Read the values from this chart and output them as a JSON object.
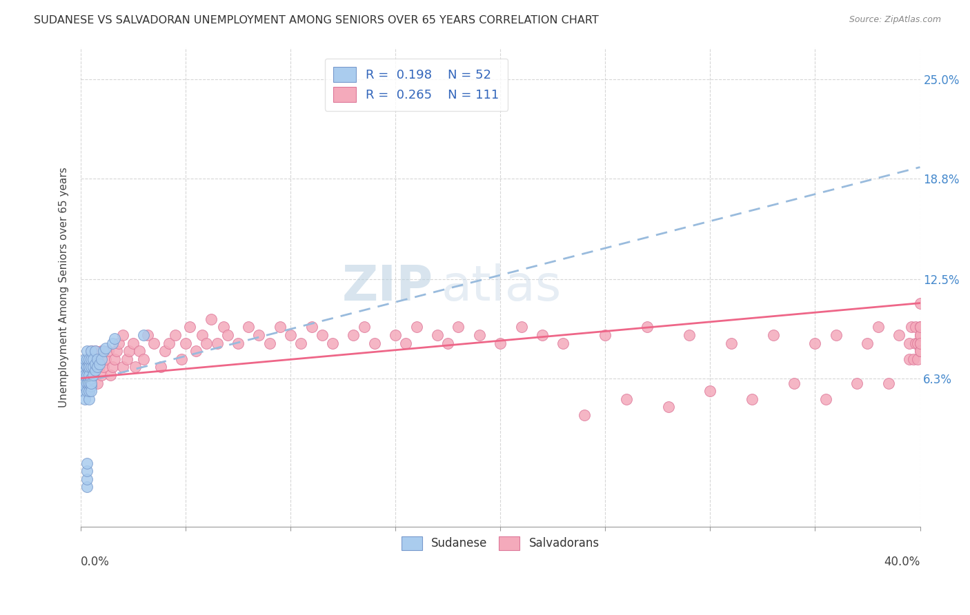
{
  "title": "SUDANESE VS SALVADORAN UNEMPLOYMENT AMONG SENIORS OVER 65 YEARS CORRELATION CHART",
  "source": "Source: ZipAtlas.com",
  "ylabel": "Unemployment Among Seniors over 65 years",
  "xlim": [
    0.0,
    0.4
  ],
  "ylim": [
    -0.03,
    0.27
  ],
  "yticks": [
    0.063,
    0.125,
    0.188,
    0.25
  ],
  "ytick_labels": [
    "6.3%",
    "12.5%",
    "18.8%",
    "25.0%"
  ],
  "xtick_left_label": "0.0%",
  "xtick_right_label": "40.0%",
  "sudanese_color": "#aaccee",
  "salvadoran_color": "#f4aabb",
  "sudanese_edge": "#7799cc",
  "salvadoran_edge": "#dd7799",
  "trend_blue_color": "#99bbdd",
  "trend_pink_color": "#ee6688",
  "legend_R_sudanese": "0.198",
  "legend_N_sudanese": "52",
  "legend_R_salvadoran": "0.265",
  "legend_N_salvadoran": "111",
  "watermark_zip": "ZIP",
  "watermark_atlas": "atlas",
  "sudanese_x": [
    0.001,
    0.001,
    0.001,
    0.002,
    0.002,
    0.002,
    0.002,
    0.002,
    0.002,
    0.002,
    0.003,
    0.003,
    0.003,
    0.003,
    0.003,
    0.003,
    0.003,
    0.003,
    0.003,
    0.003,
    0.004,
    0.004,
    0.004,
    0.004,
    0.004,
    0.004,
    0.004,
    0.004,
    0.004,
    0.004,
    0.005,
    0.005,
    0.005,
    0.005,
    0.005,
    0.005,
    0.005,
    0.006,
    0.006,
    0.006,
    0.007,
    0.007,
    0.007,
    0.008,
    0.008,
    0.009,
    0.01,
    0.011,
    0.012,
    0.015,
    0.016,
    0.03
  ],
  "sudanese_y": [
    0.065,
    0.07,
    0.055,
    0.068,
    0.072,
    0.06,
    0.05,
    0.065,
    0.075,
    0.058,
    -0.005,
    0.0,
    0.005,
    0.01,
    0.06,
    0.055,
    0.065,
    0.07,
    0.075,
    0.08,
    0.058,
    0.062,
    0.068,
    0.072,
    0.05,
    0.055,
    0.06,
    0.065,
    0.07,
    0.075,
    0.058,
    0.063,
    0.07,
    0.075,
    0.08,
    0.055,
    0.06,
    0.065,
    0.07,
    0.075,
    0.068,
    0.072,
    0.08,
    0.07,
    0.075,
    0.072,
    0.075,
    0.08,
    0.082,
    0.085,
    0.088,
    0.09
  ],
  "salvadoran_x": [
    0.001,
    0.002,
    0.003,
    0.003,
    0.004,
    0.004,
    0.005,
    0.005,
    0.005,
    0.006,
    0.006,
    0.007,
    0.007,
    0.008,
    0.008,
    0.009,
    0.01,
    0.01,
    0.011,
    0.012,
    0.013,
    0.014,
    0.015,
    0.016,
    0.017,
    0.018,
    0.02,
    0.02,
    0.022,
    0.023,
    0.025,
    0.026,
    0.028,
    0.03,
    0.032,
    0.035,
    0.038,
    0.04,
    0.042,
    0.045,
    0.048,
    0.05,
    0.052,
    0.055,
    0.058,
    0.06,
    0.062,
    0.065,
    0.068,
    0.07,
    0.075,
    0.08,
    0.085,
    0.09,
    0.095,
    0.1,
    0.105,
    0.11,
    0.115,
    0.12,
    0.13,
    0.135,
    0.14,
    0.15,
    0.155,
    0.16,
    0.17,
    0.175,
    0.18,
    0.19,
    0.2,
    0.21,
    0.22,
    0.23,
    0.24,
    0.25,
    0.26,
    0.27,
    0.28,
    0.29,
    0.3,
    0.31,
    0.32,
    0.33,
    0.34,
    0.35,
    0.355,
    0.36,
    0.37,
    0.375,
    0.38,
    0.385,
    0.39,
    0.395,
    0.395,
    0.396,
    0.397,
    0.398,
    0.398,
    0.399,
    0.399,
    0.4,
    0.4,
    0.4,
    0.4,
    0.4,
    0.4,
    0.4,
    0.4,
    0.4,
    0.4
  ],
  "salvadoran_y": [
    0.06,
    0.065,
    0.06,
    0.07,
    0.055,
    0.075,
    0.06,
    0.07,
    0.08,
    0.065,
    0.075,
    0.07,
    0.08,
    0.06,
    0.075,
    0.07,
    0.065,
    0.08,
    0.07,
    0.075,
    0.08,
    0.065,
    0.07,
    0.075,
    0.08,
    0.085,
    0.07,
    0.09,
    0.075,
    0.08,
    0.085,
    0.07,
    0.08,
    0.075,
    0.09,
    0.085,
    0.07,
    0.08,
    0.085,
    0.09,
    0.075,
    0.085,
    0.095,
    0.08,
    0.09,
    0.085,
    0.1,
    0.085,
    0.095,
    0.09,
    0.085,
    0.095,
    0.09,
    0.085,
    0.095,
    0.09,
    0.085,
    0.095,
    0.09,
    0.085,
    0.09,
    0.095,
    0.085,
    0.09,
    0.085,
    0.095,
    0.09,
    0.085,
    0.095,
    0.09,
    0.085,
    0.095,
    0.09,
    0.085,
    0.04,
    0.09,
    0.05,
    0.095,
    0.045,
    0.09,
    0.055,
    0.085,
    0.05,
    0.09,
    0.06,
    0.085,
    0.05,
    0.09,
    0.06,
    0.085,
    0.095,
    0.06,
    0.09,
    0.075,
    0.085,
    0.095,
    0.075,
    0.085,
    0.095,
    0.075,
    0.085,
    0.095,
    0.085,
    0.095,
    0.08,
    0.09,
    0.08,
    0.09,
    0.085,
    0.095,
    0.11
  ],
  "blue_trend_x0": 0.0,
  "blue_trend_y0": 0.06,
  "blue_trend_x1": 0.4,
  "blue_trend_y1": 0.195,
  "pink_trend_x0": 0.0,
  "pink_trend_y0": 0.063,
  "pink_trend_x1": 0.4,
  "pink_trend_y1": 0.11
}
